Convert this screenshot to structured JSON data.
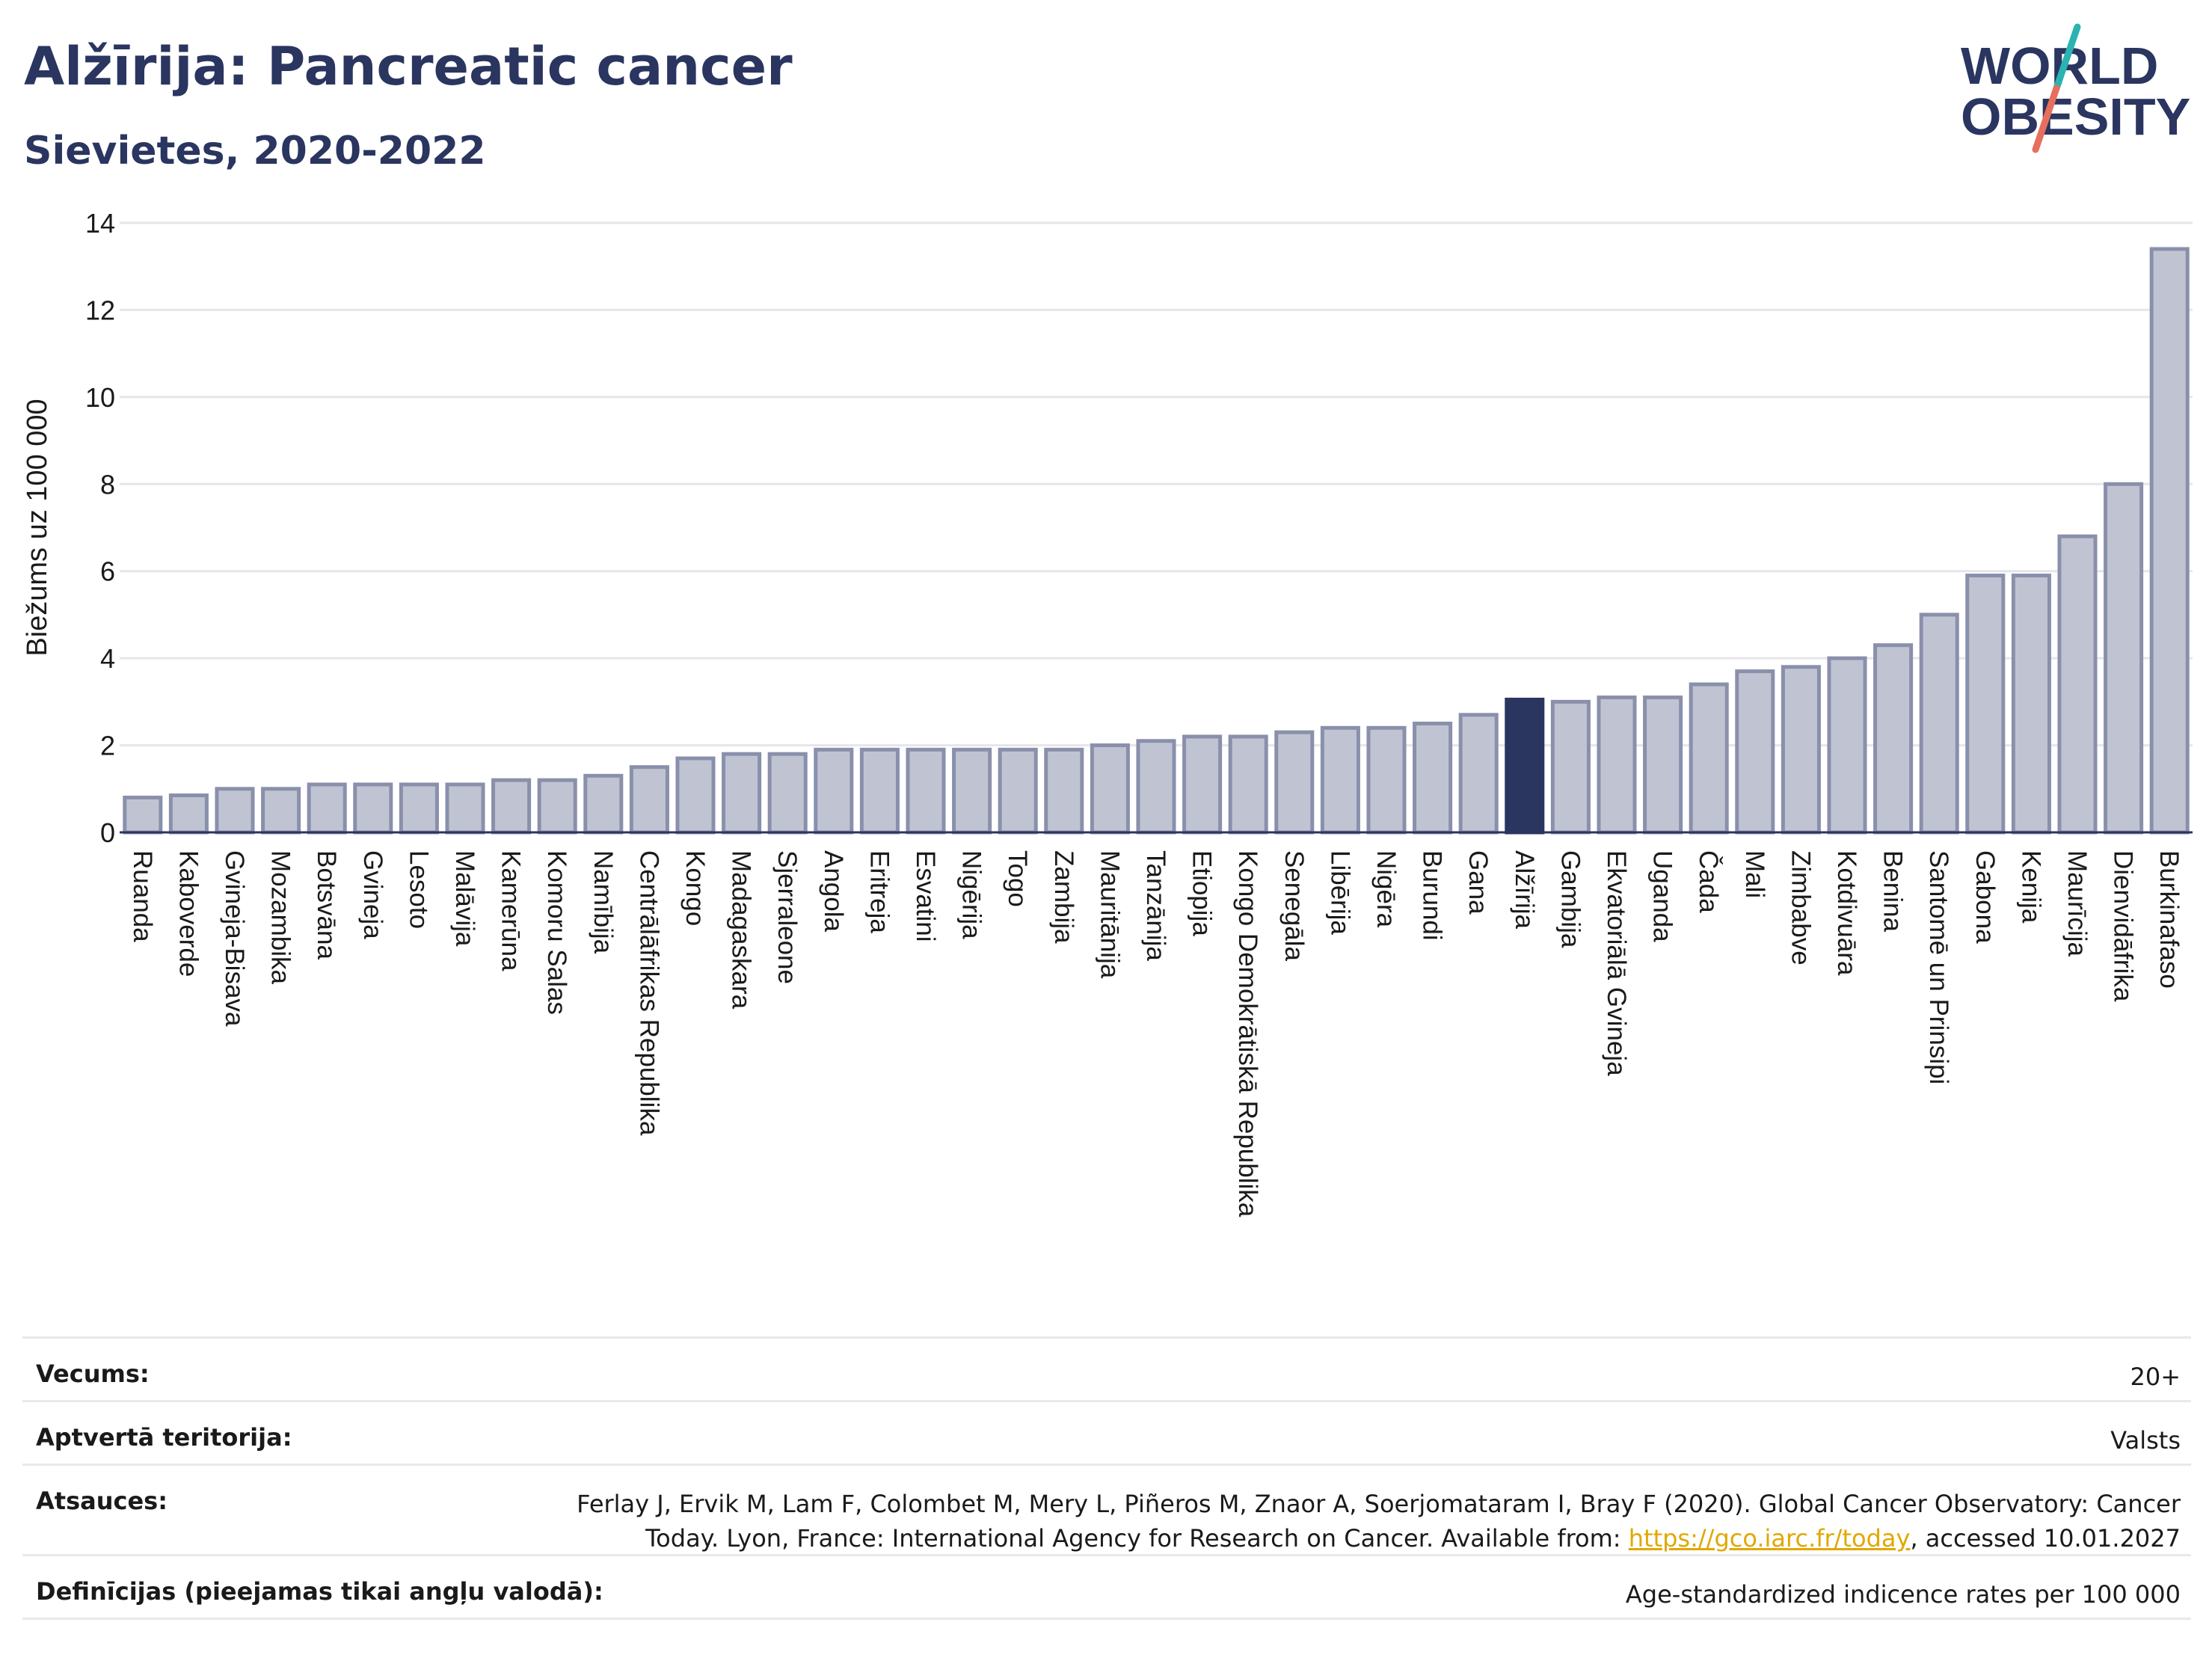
{
  "header": {
    "title": "Alžīrija: Pancreatic cancer",
    "subtitle": "Sievietes, 2020-2022"
  },
  "logo": {
    "line1": "WORLD",
    "line2": "OBESITY"
  },
  "colors": {
    "bar_fill": "#c0c4d2",
    "bar_stroke": "#8a90ab",
    "highlight": "#2a3560",
    "grid": "#e6e6ea",
    "title": "#2a3560",
    "link": "#e0a800",
    "logo_teal": "#2ab3b1",
    "logo_coral": "#e76f5e"
  },
  "chart_data": {
    "type": "bar",
    "ylabel": "Biežums uz 100 000",
    "ylim": [
      0,
      14
    ],
    "yticks": [
      0,
      2,
      4,
      6,
      8,
      10,
      12,
      14
    ],
    "grid": true,
    "highlight_category": "Alžīrija",
    "categories": [
      "Ruanda",
      "Kaboverde",
      "Gvineja-Bisava",
      "Mozambika",
      "Botsvāna",
      "Gvineja",
      "Lesoto",
      "Malāvija",
      "Kamerūna",
      "Komoru Salas",
      "Namībija",
      "Centrālāfrikas Republika",
      "Kongo",
      "Madagaskara",
      "Sjerraleone",
      "Angola",
      "Eritreja",
      "Esvatini",
      "Nigērija",
      "Togo",
      "Zambija",
      "Mauritānija",
      "Tanzānija",
      "Etiopija",
      "Kongo Demokrātiskā Republika",
      "Senegāla",
      "Libērija",
      "Nigēra",
      "Burundi",
      "Gana",
      "Alžīrija",
      "Gambija",
      "Ekvatoriālā Gvineja",
      "Uganda",
      "Čada",
      "Mali",
      "Zimbabve",
      "Kotdivuāra",
      "Benina",
      "Santomē un Prinsipi",
      "Gabona",
      "Kenija",
      "Maurīcija",
      "Dienvidāfrika",
      "Burkinafaso"
    ],
    "values": [
      0.8,
      0.85,
      1.0,
      1.0,
      1.1,
      1.1,
      1.1,
      1.1,
      1.2,
      1.2,
      1.3,
      1.5,
      1.7,
      1.8,
      1.8,
      1.9,
      1.9,
      1.9,
      1.9,
      1.9,
      1.9,
      2.0,
      2.1,
      2.2,
      2.2,
      2.3,
      2.4,
      2.4,
      2.5,
      2.7,
      3.05,
      3.0,
      3.1,
      3.1,
      3.4,
      3.7,
      3.8,
      4.0,
      4.3,
      5.0,
      5.9,
      5.9,
      6.8,
      8.0,
      13.4
    ]
  },
  "meta": [
    {
      "key": "Vecums:",
      "value": "20+"
    },
    {
      "key": "Aptvertā teritorija:",
      "value": "Valsts"
    },
    {
      "key": "Atsauces:",
      "value": "Ferlay J, Ervik M, Lam F, Colombet M, Mery L, Piñeros M, Znaor A, Soerjomataram I, Bray F (2020). Global Cancer Observatory: Cancer Today. Lyon, France: International Agency for Research on Cancer. Available from: ",
      "link": "https://gco.iarc.fr/today",
      "value_after": ", accessed 10.01.2027"
    },
    {
      "key": "Definīcijas (pieejamas tikai angļu valodā):",
      "value": "Age-standardized indicence rates per 100 000"
    }
  ]
}
